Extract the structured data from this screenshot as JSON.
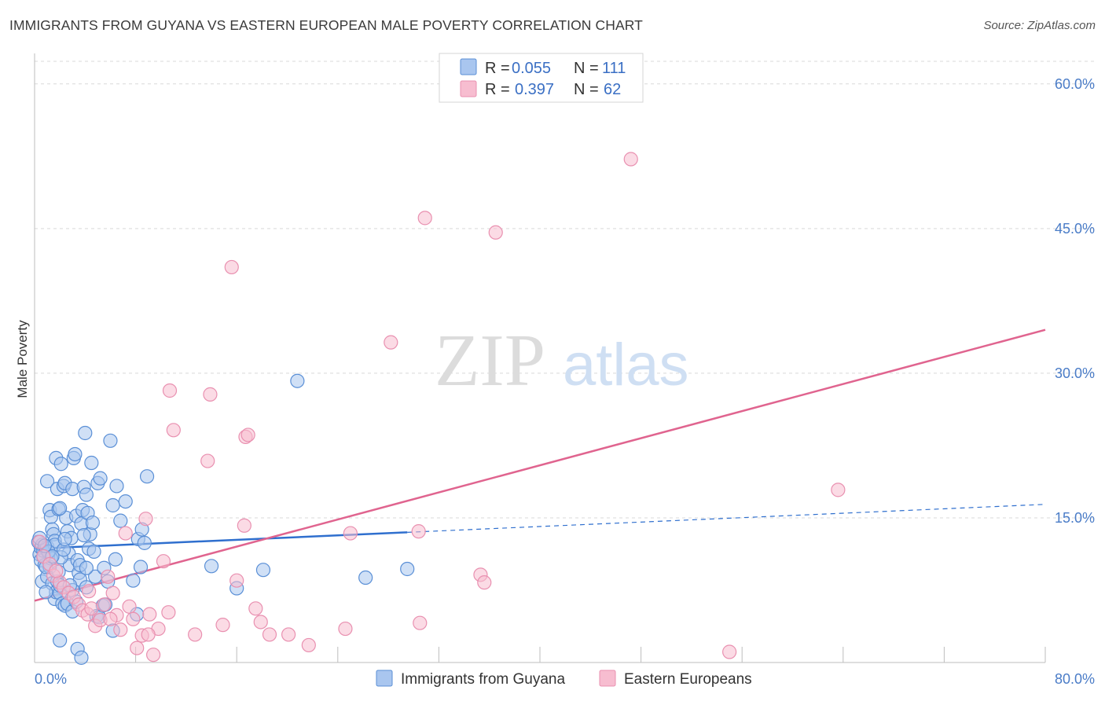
{
  "title": "IMMIGRANTS FROM GUYANA VS EASTERN EUROPEAN MALE POVERTY CORRELATION CHART",
  "source": "Source: ZipAtlas.com",
  "watermark": {
    "zip": "ZIP",
    "atlas": "atlas"
  },
  "colors": {
    "blue_fill": "#a9c6ef",
    "blue_stroke": "#5a8fd6",
    "blue_line": "#2f6fce",
    "pink_fill": "#f7bdd0",
    "pink_stroke": "#e990b0",
    "pink_line": "#e0648f",
    "grid": "#d9d9d9",
    "tick_text": "#4a7cc7"
  },
  "legend": {
    "rows": [
      {
        "r_label": "R =",
        "r_value": "0.055",
        "n_label": "N =",
        "n_value": "111",
        "series": "blue"
      },
      {
        "r_label": "R =",
        "r_value": "0.397",
        "n_label": "N =",
        "n_value": "62",
        "series": "pink"
      }
    ]
  },
  "chart_data": {
    "type": "scatter",
    "title": "IMMIGRANTS FROM GUYANA VS EASTERN EUROPEAN MALE POVERTY CORRELATION CHART",
    "xlabel": "",
    "ylabel": "Male Poverty",
    "xlim": [
      0,
      80
    ],
    "ylim": [
      0,
      63
    ],
    "x_tick_labels": [
      "0.0%",
      "80.0%"
    ],
    "y_ticks": [
      15,
      30,
      45,
      60
    ],
    "y_tick_labels": [
      "15.0%",
      "30.0%",
      "45.0%",
      "60.0%"
    ],
    "grid": true,
    "legend_position": "top-center",
    "series": [
      {
        "name": "Immigrants from Guyana",
        "color": "blue",
        "trend": {
          "x": [
            0,
            29.5
          ],
          "y": [
            11.8,
            13.5
          ],
          "dashed_extension": {
            "x": [
              29.5,
              80
            ],
            "y": [
              13.5,
              16.4
            ]
          }
        },
        "points": [
          [
            0.3,
            12.5
          ],
          [
            0.4,
            11.2
          ],
          [
            0.5,
            10.6
          ],
          [
            0.5,
            11.9
          ],
          [
            0.6,
            12.2
          ],
          [
            0.7,
            11.6
          ],
          [
            0.8,
            10.1
          ],
          [
            0.9,
            11.8
          ],
          [
            1.0,
            12.0
          ],
          [
            1.1,
            11.4
          ],
          [
            0.6,
            8.4
          ],
          [
            1.0,
            8.9
          ],
          [
            1.2,
            9.9
          ],
          [
            1.4,
            8.2
          ],
          [
            1.6,
            6.6
          ],
          [
            1.7,
            7.3
          ],
          [
            1.8,
            8.4
          ],
          [
            2.0,
            7.2
          ],
          [
            2.2,
            6.1
          ],
          [
            2.4,
            5.9
          ],
          [
            1.0,
            18.8
          ],
          [
            1.2,
            15.8
          ],
          [
            1.3,
            15.1
          ],
          [
            1.4,
            13.8
          ],
          [
            1.5,
            13.3
          ],
          [
            1.6,
            12.6
          ],
          [
            1.7,
            21.2
          ],
          [
            1.8,
            18.0
          ],
          [
            1.9,
            15.9
          ],
          [
            2.1,
            20.6
          ],
          [
            2.3,
            18.3
          ],
          [
            2.4,
            18.6
          ],
          [
            2.5,
            15.0
          ],
          [
            2.6,
            13.6
          ],
          [
            2.7,
            11.3
          ],
          [
            2.8,
            10.1
          ],
          [
            2.9,
            12.9
          ],
          [
            3.0,
            18.0
          ],
          [
            3.1,
            21.2
          ],
          [
            3.2,
            21.6
          ],
          [
            3.3,
            15.2
          ],
          [
            3.4,
            10.6
          ],
          [
            3.5,
            9.3
          ],
          [
            3.6,
            8.6
          ],
          [
            3.7,
            14.4
          ],
          [
            3.8,
            15.8
          ],
          [
            3.9,
            18.2
          ],
          [
            4.0,
            23.8
          ],
          [
            4.1,
            17.4
          ],
          [
            4.2,
            15.5
          ],
          [
            4.3,
            11.8
          ],
          [
            4.4,
            13.3
          ],
          [
            4.5,
            20.7
          ],
          [
            4.6,
            14.5
          ],
          [
            4.7,
            11.5
          ],
          [
            4.8,
            8.9
          ],
          [
            5.0,
            18.6
          ],
          [
            5.2,
            19.1
          ],
          [
            5.5,
            9.8
          ],
          [
            5.8,
            8.4
          ],
          [
            6.0,
            23.0
          ],
          [
            6.2,
            16.3
          ],
          [
            6.5,
            18.3
          ],
          [
            6.8,
            14.7
          ],
          [
            7.2,
            16.7
          ],
          [
            7.8,
            8.5
          ],
          [
            8.2,
            12.8
          ],
          [
            8.5,
            13.8
          ],
          [
            8.7,
            12.4
          ],
          [
            8.9,
            19.3
          ],
          [
            2.0,
            8.0
          ],
          [
            2.6,
            6.1
          ],
          [
            3.0,
            5.3
          ],
          [
            3.6,
            10.1
          ],
          [
            4.1,
            9.8
          ],
          [
            4.9,
            4.8
          ],
          [
            5.4,
            5.9
          ],
          [
            6.2,
            3.3
          ],
          [
            8.1,
            5.0
          ],
          [
            8.4,
            9.9
          ],
          [
            2.0,
            2.3
          ],
          [
            3.4,
            1.4
          ],
          [
            3.7,
            0.5
          ],
          [
            3.0,
            7.5
          ],
          [
            2.1,
            10.9
          ],
          [
            1.3,
            10.8
          ],
          [
            0.9,
            9.9
          ],
          [
            4.1,
            7.8
          ],
          [
            5.6,
            6.0
          ],
          [
            6.4,
            10.7
          ],
          [
            14.0,
            10.0
          ],
          [
            16.0,
            7.7
          ],
          [
            18.1,
            9.6
          ],
          [
            20.8,
            29.2
          ],
          [
            26.2,
            8.8
          ],
          [
            29.5,
            9.7
          ],
          [
            1.6,
            12.2
          ],
          [
            2.3,
            11.7
          ],
          [
            3.9,
            13.2
          ],
          [
            2.0,
            16.0
          ],
          [
            1.1,
            11.5
          ],
          [
            0.7,
            11.0
          ],
          [
            0.4,
            12.9
          ],
          [
            1.9,
            9.4
          ],
          [
            2.8,
            8.0
          ],
          [
            3.3,
            6.3
          ],
          [
            5.1,
            4.7
          ],
          [
            0.9,
            7.3
          ],
          [
            2.4,
            12.8
          ],
          [
            1.4,
            11.0
          ],
          [
            0.8,
            12.1
          ]
        ]
      },
      {
        "name": "Eastern Europeans",
        "color": "pink",
        "trend": {
          "x": [
            0,
            80
          ],
          "y": [
            6.4,
            34.5
          ]
        },
        "points": [
          [
            0.4,
            12.5
          ],
          [
            0.7,
            11.0
          ],
          [
            1.2,
            10.2
          ],
          [
            1.5,
            9.0
          ],
          [
            2.0,
            8.3
          ],
          [
            2.3,
            7.8
          ],
          [
            2.7,
            7.2
          ],
          [
            3.1,
            6.8
          ],
          [
            3.5,
            6.0
          ],
          [
            3.8,
            5.4
          ],
          [
            4.2,
            5.0
          ],
          [
            4.5,
            5.6
          ],
          [
            4.8,
            3.8
          ],
          [
            5.2,
            4.4
          ],
          [
            5.5,
            6.0
          ],
          [
            5.8,
            8.9
          ],
          [
            6.2,
            7.2
          ],
          [
            6.5,
            4.9
          ],
          [
            6.8,
            3.4
          ],
          [
            7.2,
            13.4
          ],
          [
            7.5,
            5.8
          ],
          [
            7.8,
            4.5
          ],
          [
            8.1,
            1.5
          ],
          [
            8.5,
            2.8
          ],
          [
            8.8,
            14.9
          ],
          [
            9.1,
            5.0
          ],
          [
            9.4,
            0.8
          ],
          [
            9.8,
            3.5
          ],
          [
            10.2,
            10.5
          ],
          [
            10.6,
            5.2
          ],
          [
            11.0,
            24.1
          ],
          [
            12.7,
            2.9
          ],
          [
            13.7,
            20.9
          ],
          [
            13.9,
            27.8
          ],
          [
            14.9,
            3.9
          ],
          [
            15.6,
            41.0
          ],
          [
            16.0,
            8.5
          ],
          [
            16.6,
            14.2
          ],
          [
            16.7,
            23.4
          ],
          [
            16.9,
            23.6
          ],
          [
            17.5,
            5.6
          ],
          [
            17.9,
            4.2
          ],
          [
            18.6,
            2.9
          ],
          [
            20.1,
            2.9
          ],
          [
            21.7,
            1.8
          ],
          [
            24.6,
            3.5
          ],
          [
            25.0,
            13.4
          ],
          [
            28.2,
            33.2
          ],
          [
            30.4,
            13.6
          ],
          [
            30.5,
            4.1
          ],
          [
            30.9,
            46.1
          ],
          [
            35.3,
            9.1
          ],
          [
            35.6,
            8.3
          ],
          [
            36.5,
            44.6
          ],
          [
            47.2,
            52.2
          ],
          [
            63.6,
            17.9
          ],
          [
            55.0,
            1.1
          ],
          [
            10.7,
            28.2
          ],
          [
            9.0,
            2.9
          ],
          [
            4.3,
            7.4
          ],
          [
            6.0,
            4.5
          ],
          [
            1.7,
            9.5
          ]
        ]
      }
    ]
  },
  "bottom_legend": {
    "items": [
      "Immigrants from Guyana",
      "Eastern Europeans"
    ]
  }
}
